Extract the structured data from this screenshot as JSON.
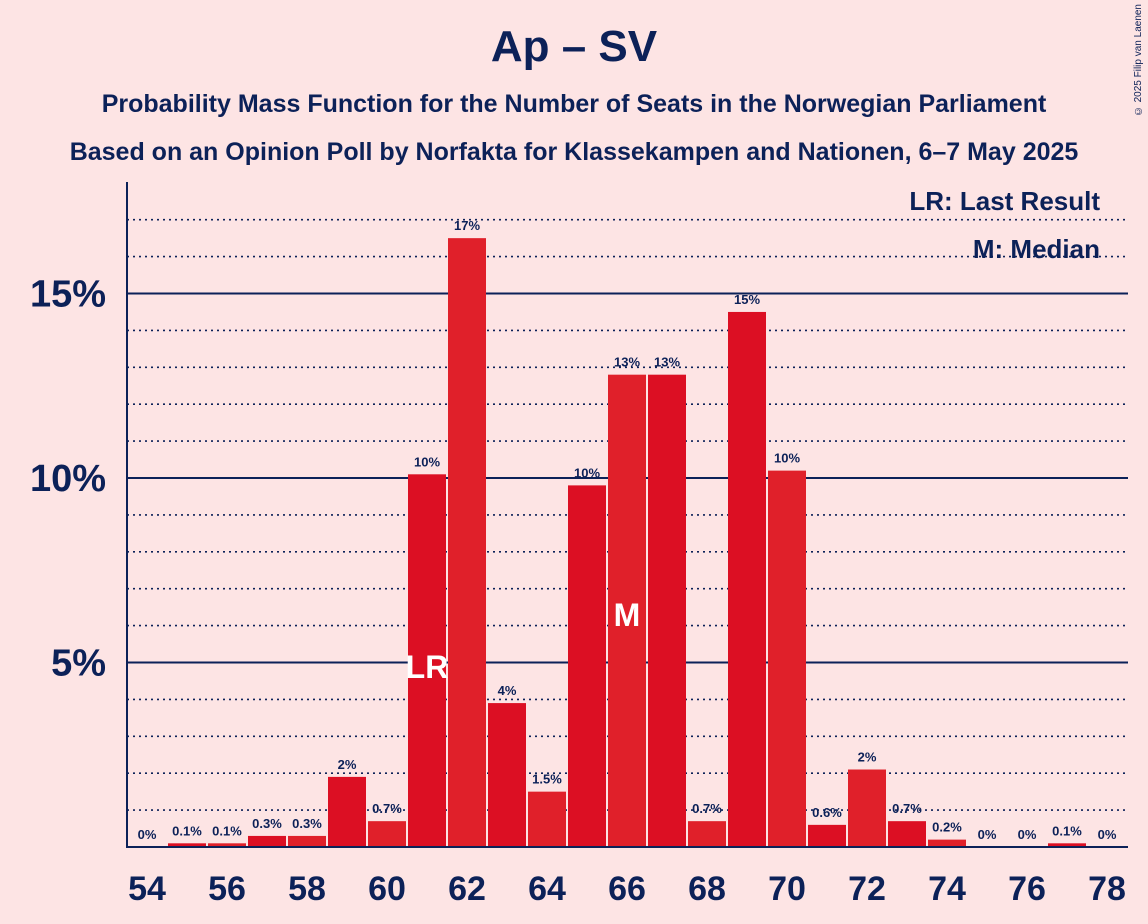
{
  "title": "Ap – SV",
  "subtitle_1": "Probability Mass Function for the Number of Seats in the Norwegian Parliament",
  "subtitle_2": "Based on an Opinion Poll by Norfakta for Klassekampen and Nationen, 6–7 May 2025",
  "copyright": "© 2025 Filip van Laenen",
  "legend": {
    "lr": "LR: Last Result",
    "m": "M: Median"
  },
  "colors": {
    "background": "#fde4e4",
    "bar_primary": "#dc0f23",
    "bar_secondary": "#e0202a",
    "axis": "#0c2158",
    "bar_text": "#ffffff"
  },
  "chart_data": {
    "type": "bar",
    "x": [
      54,
      55,
      56,
      57,
      58,
      59,
      60,
      61,
      62,
      63,
      64,
      65,
      66,
      67,
      68,
      69,
      70,
      71,
      72,
      73,
      74,
      75,
      76,
      77,
      78
    ],
    "values": [
      0,
      0.1,
      0.1,
      0.3,
      0.3,
      1.9,
      0.7,
      10.1,
      16.5,
      3.9,
      1.5,
      9.8,
      12.8,
      12.8,
      0.7,
      14.5,
      10.2,
      0.6,
      2.1,
      0.7,
      0.2,
      0,
      0,
      0.1,
      0
    ],
    "bar_labels": [
      "0%",
      "0.1%",
      "0.1%",
      "0.3%",
      "0.3%",
      "2%",
      "0.7%",
      "10%",
      "17%",
      "4%",
      "1.5%",
      "10%",
      "13%",
      "13%",
      "0.7%",
      "15%",
      "10%",
      "0.6%",
      "2%",
      "0.7%",
      "0.2%",
      "0%",
      "0%",
      "0.1%",
      "0%"
    ],
    "x_tick_labels": [
      "54",
      "56",
      "58",
      "60",
      "62",
      "64",
      "66",
      "68",
      "70",
      "72",
      "74",
      "76",
      "78"
    ],
    "y_tick_labels": [
      "5%",
      "10%",
      "15%"
    ],
    "y_ticks": [
      5,
      10,
      15
    ],
    "ylim": [
      0,
      18
    ],
    "last_result_seat": 61,
    "last_result_marker": "LR",
    "median_seat": 66,
    "median_marker": "M",
    "grid": "dotted minor every 1%, solid major every 5%"
  }
}
